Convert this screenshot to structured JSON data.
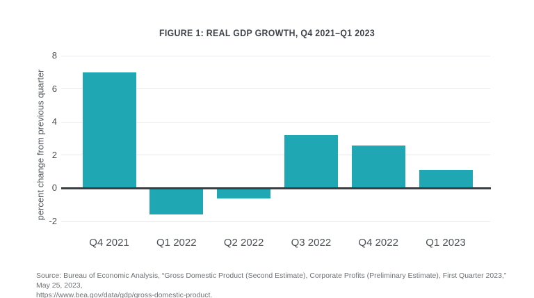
{
  "figure": {
    "title": "FIGURE 1: REAL GDP GROWTH, Q4 2021–Q1 2023",
    "source_line1": "Source: Bureau of Economic Analysis, “Gross Domestic Product (Second Estimate), Corporate Profits (Preliminary Estimate), First Quarter 2023,” May 25, 2023,",
    "source_line2": "https://www.bea.gov/data/gdp/gross-domestic-product."
  },
  "chart_data": {
    "type": "bar",
    "title": "FIGURE 1: REAL GDP GROWTH, Q4 2021–Q1 2023",
    "categories": [
      "Q4 2021",
      "Q1 2022",
      "Q2 2022",
      "Q3 2022",
      "Q4 2022",
      "Q1 2023"
    ],
    "values": [
      7.0,
      -1.6,
      -0.6,
      3.2,
      2.6,
      1.1
    ],
    "xlabel": "",
    "ylabel": "percent change from previous quarter",
    "ylim": [
      -2,
      8
    ],
    "yticks": [
      8,
      6,
      4,
      2,
      0,
      -2
    ],
    "grid": true,
    "legend": "none",
    "bar_color": "#1fa8b4",
    "zero_line_color": "#3a3e43",
    "gridline_color": "#e8e9ec"
  }
}
